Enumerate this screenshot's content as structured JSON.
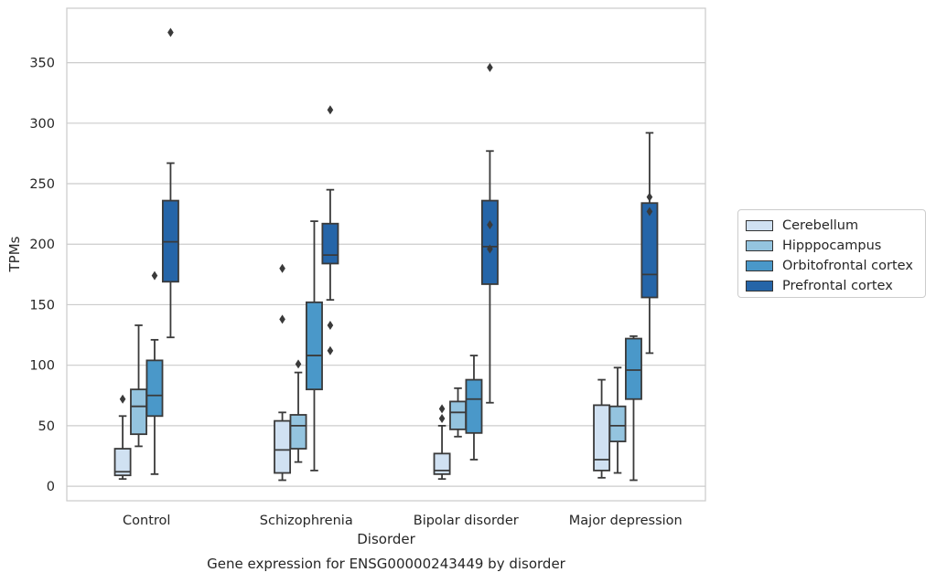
{
  "chart_data": {
    "type": "box",
    "title": "Gene expression for ENSG00000243449 by disorder",
    "xlabel": "Disorder",
    "ylabel": "TPMs",
    "ylim": [
      -12,
      395
    ],
    "yticks": [
      0,
      50,
      100,
      150,
      200,
      250,
      300,
      350
    ],
    "categories": [
      "Control",
      "Schizophrenia",
      "Bipolar disorder",
      "Major depression"
    ],
    "grid": "horizontal",
    "legend_position": "right",
    "series": [
      {
        "name": "Cerebellum",
        "color": "#d0e1f2",
        "boxes": [
          {
            "whislo": 6,
            "q1": 9,
            "med": 12,
            "q3": 31,
            "whishi": 58,
            "fliers": [
              72
            ]
          },
          {
            "whislo": 5,
            "q1": 11,
            "med": 30,
            "q3": 54,
            "whishi": 61,
            "fliers": [
              138,
              180
            ]
          },
          {
            "whislo": 6,
            "q1": 10,
            "med": 13,
            "q3": 27,
            "whishi": 50,
            "fliers": [
              56,
              64
            ]
          },
          {
            "whislo": 7,
            "q1": 13,
            "med": 22,
            "q3": 67,
            "whishi": 88,
            "fliers": []
          }
        ]
      },
      {
        "name": "Hipppocampus",
        "color": "#94c4df",
        "boxes": [
          {
            "whislo": 33,
            "q1": 43,
            "med": 66,
            "q3": 80,
            "whishi": 133,
            "fliers": []
          },
          {
            "whislo": 20,
            "q1": 31,
            "med": 50,
            "q3": 59,
            "whishi": 94,
            "fliers": [
              101
            ]
          },
          {
            "whislo": 41,
            "q1": 47,
            "med": 61,
            "q3": 70,
            "whishi": 81,
            "fliers": []
          },
          {
            "whislo": 11,
            "q1": 37,
            "med": 50,
            "q3": 66,
            "whishi": 98,
            "fliers": []
          }
        ]
      },
      {
        "name": "Orbitofrontal cortex",
        "color": "#4a98c9",
        "boxes": [
          {
            "whislo": 10,
            "q1": 58,
            "med": 75,
            "q3": 104,
            "whishi": 121,
            "fliers": [
              174
            ]
          },
          {
            "whislo": 13,
            "q1": 80,
            "med": 108,
            "q3": 152,
            "whishi": 219,
            "fliers": []
          },
          {
            "whislo": 22,
            "q1": 44,
            "med": 72,
            "q3": 88,
            "whishi": 108,
            "fliers": []
          },
          {
            "whislo": 5,
            "q1": 72,
            "med": 96,
            "q3": 122,
            "whishi": 124,
            "fliers": []
          }
        ]
      },
      {
        "name": "Prefrontal cortex",
        "color": "#2565a8",
        "boxes": [
          {
            "whislo": 123,
            "q1": 169,
            "med": 202,
            "q3": 236,
            "whishi": 267,
            "fliers": [
              375
            ]
          },
          {
            "whislo": 154,
            "q1": 184,
            "med": 191,
            "q3": 217,
            "whishi": 245,
            "fliers": [
              112,
              133,
              311
            ]
          },
          {
            "whislo": 69,
            "q1": 167,
            "med": 198,
            "q3": 236,
            "whishi": 277,
            "fliers": [
              196,
              216,
              346
            ]
          },
          {
            "whislo": 110,
            "q1": 156,
            "med": 175,
            "q3": 234,
            "whishi": 292,
            "fliers": [
              227,
              239
            ]
          }
        ]
      }
    ]
  }
}
